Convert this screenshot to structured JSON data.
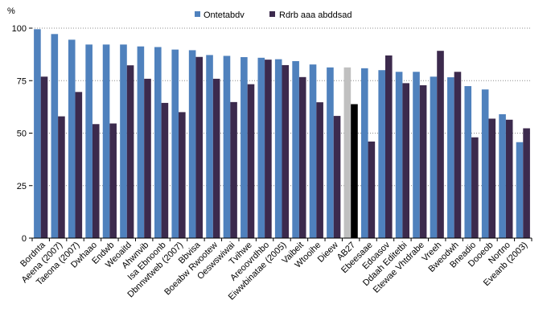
{
  "chart_data": {
    "type": "bar",
    "unit_label": "%",
    "ylim": [
      0,
      100
    ],
    "yticks": [
      0,
      25,
      50,
      75,
      100
    ],
    "grid": true,
    "legend_position": "top",
    "categories": [
      "Bordnta",
      "Aeena (2007)",
      "Taeona (2007)",
      "Dwhaao",
      "Endwb",
      "Weoaitd",
      "Ahwnvib",
      "Isa Ebnoonb",
      "Dbnnwtweb (2007)",
      "Bbvisa",
      "Boeabw Rwootew",
      "Oeswswiwai",
      "Tvihwe",
      "Areoovrdhbo",
      "Eiwwbinatae (2005)",
      "Vaibeit",
      "Wtooihe",
      "Dieew",
      "AB27",
      "Ebeesaae",
      "Edoasov",
      "Ddaah Editetbi",
      "Etewae Vhtdrabe",
      "Vreeh",
      "Bweodwh",
      "Bneadio",
      "Dooeob",
      "Nortno",
      "Eveanb (2003)"
    ],
    "highlight_index": 18,
    "highlight_colors": [
      "#c0c0c0",
      "#000000"
    ],
    "series": [
      {
        "name": "Ontetabdv",
        "color": "#4f81bd",
        "values": [
          99.5,
          97.2,
          94.5,
          92.2,
          92.2,
          92.2,
          91.3,
          91.0,
          89.8,
          89.5,
          87.2,
          86.8,
          86.2,
          85.9,
          85.2,
          84.3,
          82.7,
          81.3,
          81.3,
          80.9,
          80.0,
          79.2,
          79.2,
          76.9,
          76.6,
          72.4,
          70.8,
          59.0,
          45.7
        ]
      },
      {
        "name": "Rdrb aaa abddsad",
        "color": "#3c2a4d",
        "values": [
          76.9,
          58.0,
          69.6,
          54.3,
          54.6,
          82.3,
          75.9,
          64.4,
          60.0,
          86.3,
          75.9,
          64.8,
          73.3,
          85.0,
          82.4,
          76.7,
          64.7,
          58.2,
          63.8,
          46.0,
          87.0,
          73.8,
          72.8,
          89.2,
          79.2,
          48.0,
          56.9,
          56.4,
          52.3
        ]
      }
    ]
  }
}
